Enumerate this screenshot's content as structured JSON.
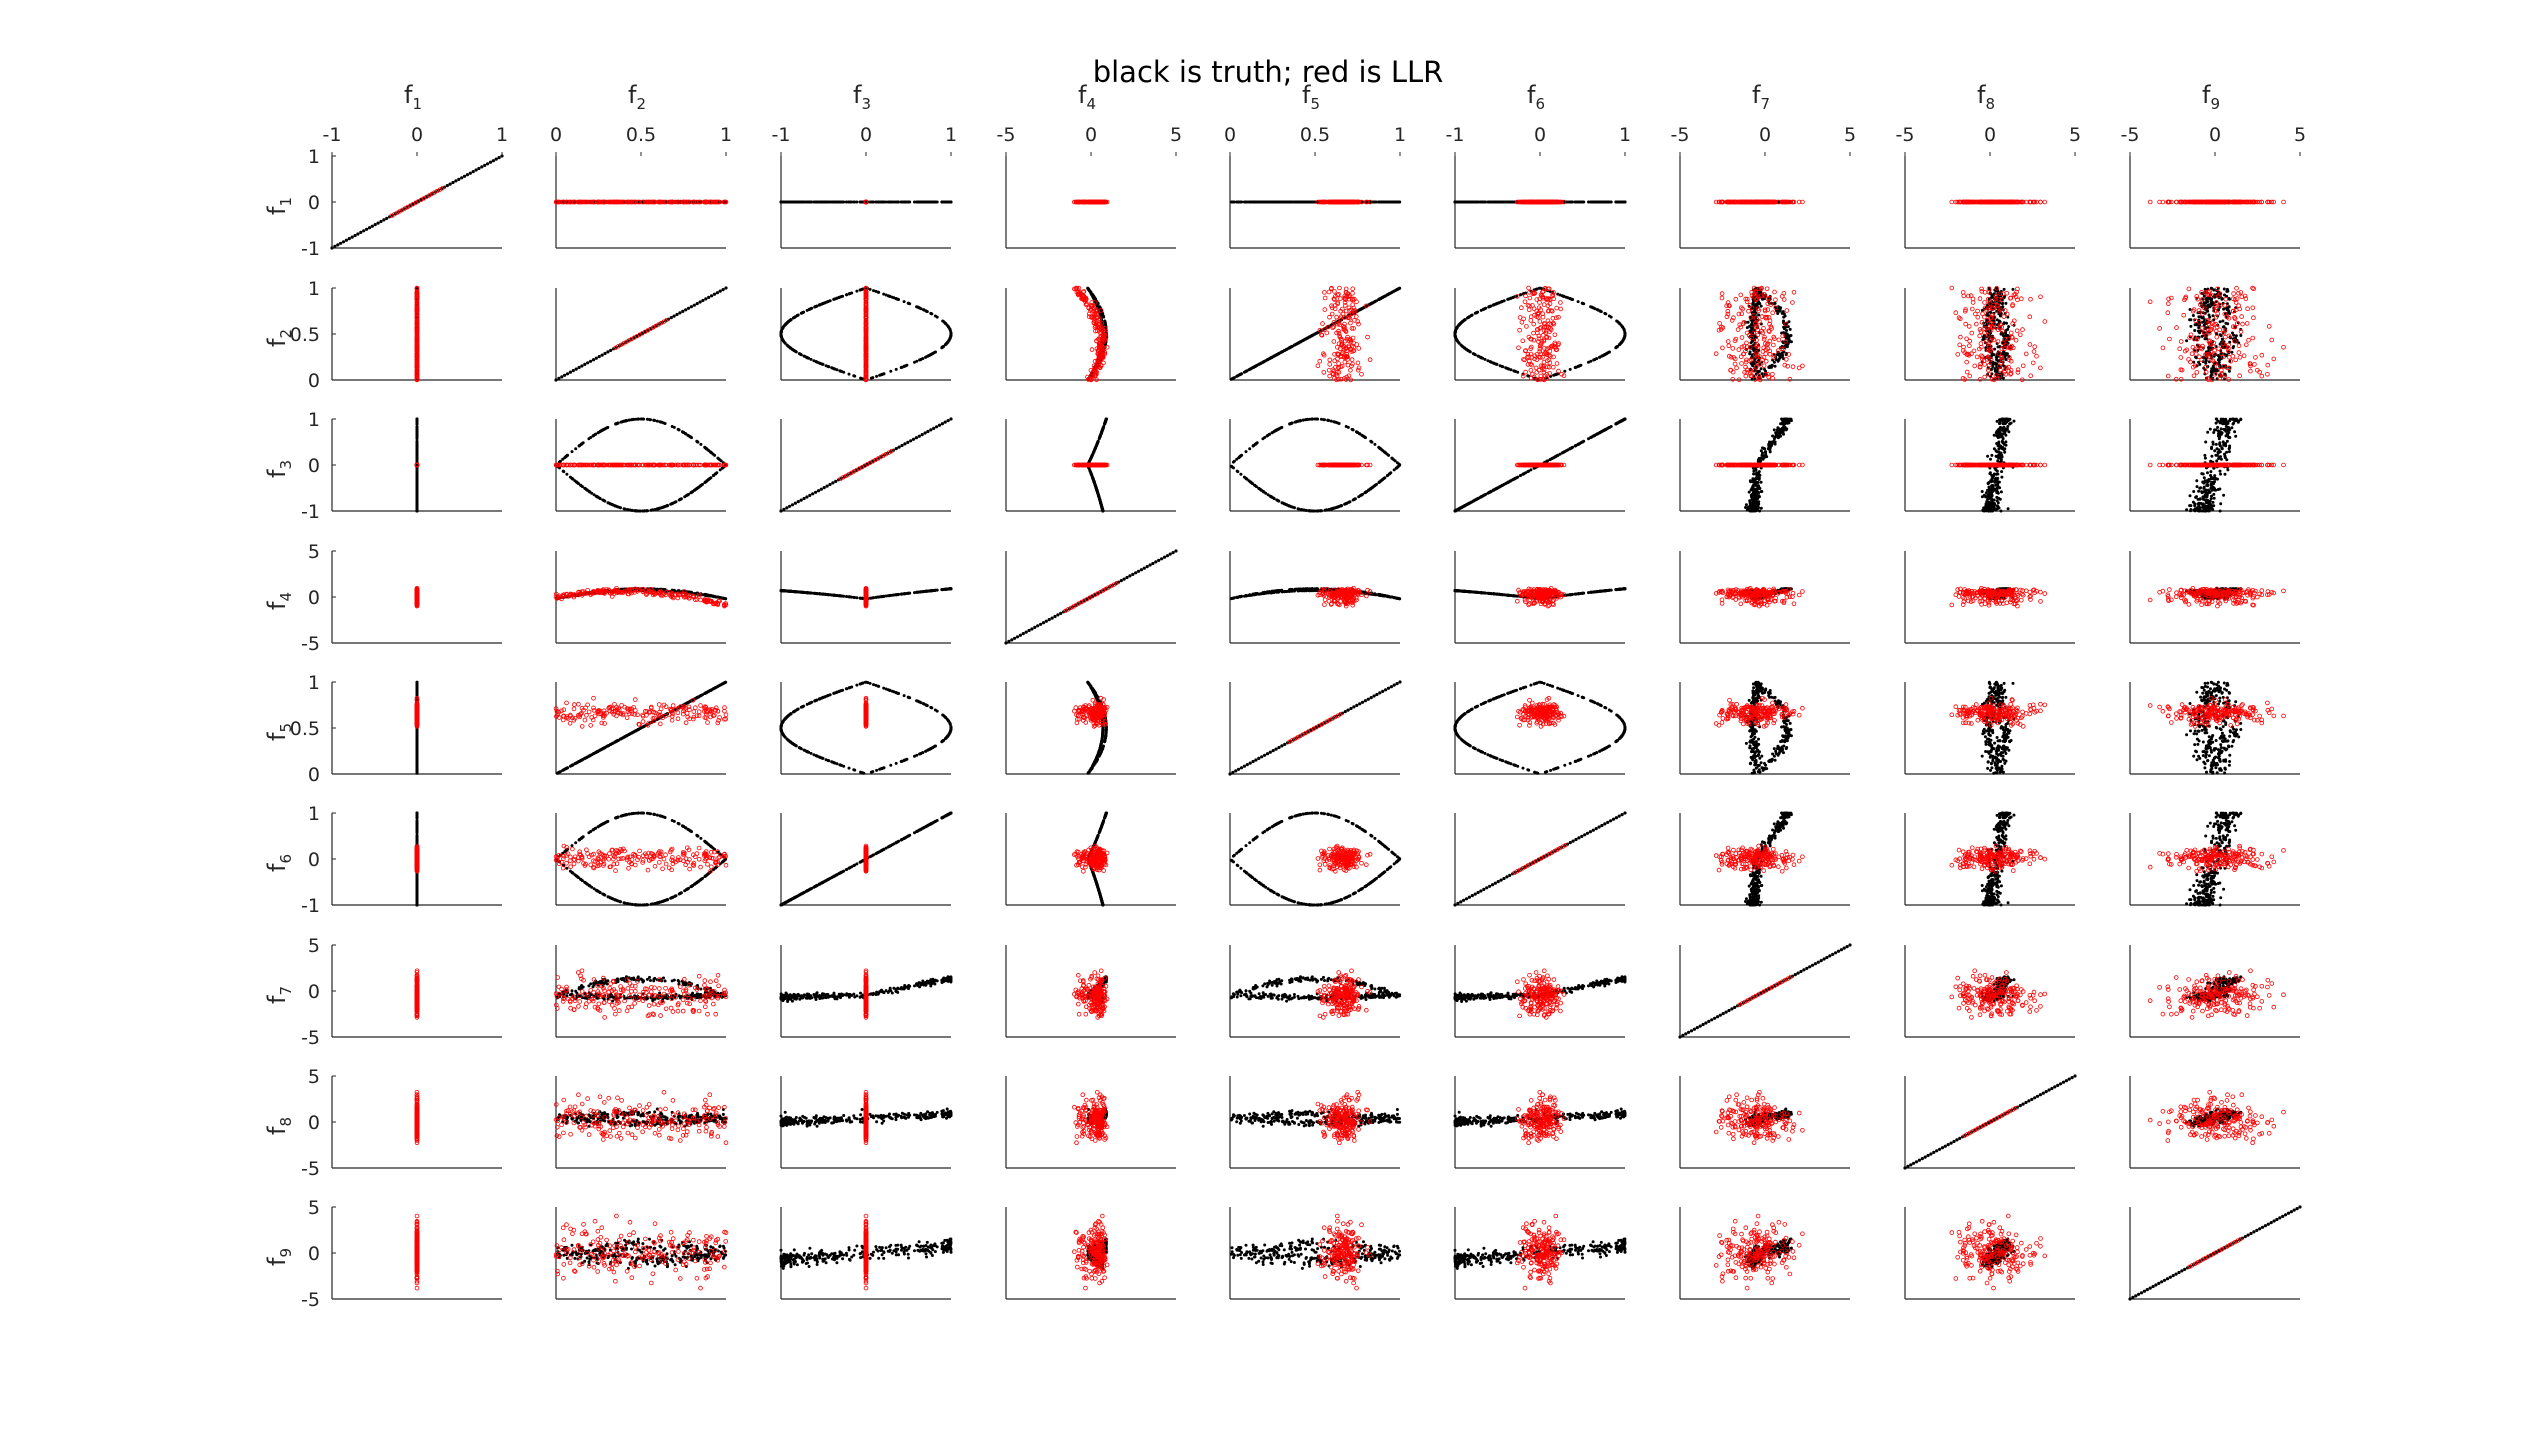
{
  "figure": {
    "title": "black is truth; red is LLR"
  },
  "colors": {
    "truth": "#000000",
    "llr": "#ff0000",
    "axis": "#262626",
    "background": "#ffffff"
  },
  "chart_data": {
    "type": "scatter",
    "title": "black is truth; red is LLR",
    "layout": "9x9 scatterplot matrix; column label on top shows x variable, row label on left shows y variable",
    "series": [
      {
        "name": "truth",
        "color": "#000000",
        "marker": "dot"
      },
      {
        "name": "LLR",
        "color": "#ff0000",
        "marker": "open-circle"
      }
    ],
    "variables": [
      {
        "label": "f",
        "sub": "1",
        "lim": [
          -1,
          1
        ],
        "ticks": [
          "-1",
          "0",
          "1"
        ],
        "tick_values": [
          -1,
          0,
          1
        ]
      },
      {
        "label": "f",
        "sub": "2",
        "lim": [
          0,
          1
        ],
        "ticks": [
          "0",
          "0.5",
          "1"
        ],
        "tick_values": [
          0,
          0.5,
          1
        ]
      },
      {
        "label": "f",
        "sub": "3",
        "lim": [
          -1,
          1
        ],
        "ticks": [
          "-1",
          "0",
          "1"
        ],
        "tick_values": [
          -1,
          0,
          1
        ]
      },
      {
        "label": "f",
        "sub": "4",
        "lim": [
          -5,
          5
        ],
        "ticks": [
          "-5",
          "0",
          "5"
        ],
        "tick_values": [
          -5,
          0,
          5
        ]
      },
      {
        "label": "f",
        "sub": "5",
        "lim": [
          0,
          1
        ],
        "ticks": [
          "0",
          "0.5",
          "1"
        ],
        "tick_values": [
          0,
          0.5,
          1
        ]
      },
      {
        "label": "f",
        "sub": "6",
        "lim": [
          -1,
          1
        ],
        "ticks": [
          "-1",
          "0",
          "1"
        ],
        "tick_values": [
          -1,
          0,
          1
        ]
      },
      {
        "label": "f",
        "sub": "7",
        "lim": [
          -5,
          5
        ],
        "ticks": [
          "-5",
          "0",
          "5"
        ],
        "tick_values": [
          -5,
          0,
          5
        ]
      },
      {
        "label": "f",
        "sub": "8",
        "lim": [
          -5,
          5
        ],
        "ticks": [
          "-5",
          "0",
          "5"
        ],
        "tick_values": [
          -5,
          0,
          5
        ]
      },
      {
        "label": "f",
        "sub": "9",
        "lim": [
          -5,
          5
        ],
        "ticks": [
          "-5",
          "0",
          "5"
        ],
        "tick_values": [
          -5,
          0,
          5
        ]
      }
    ],
    "x_ticks_shown_on": "top row only",
    "y_ticks_shown_on": "left column only",
    "grid": false,
    "legend": "none"
  }
}
